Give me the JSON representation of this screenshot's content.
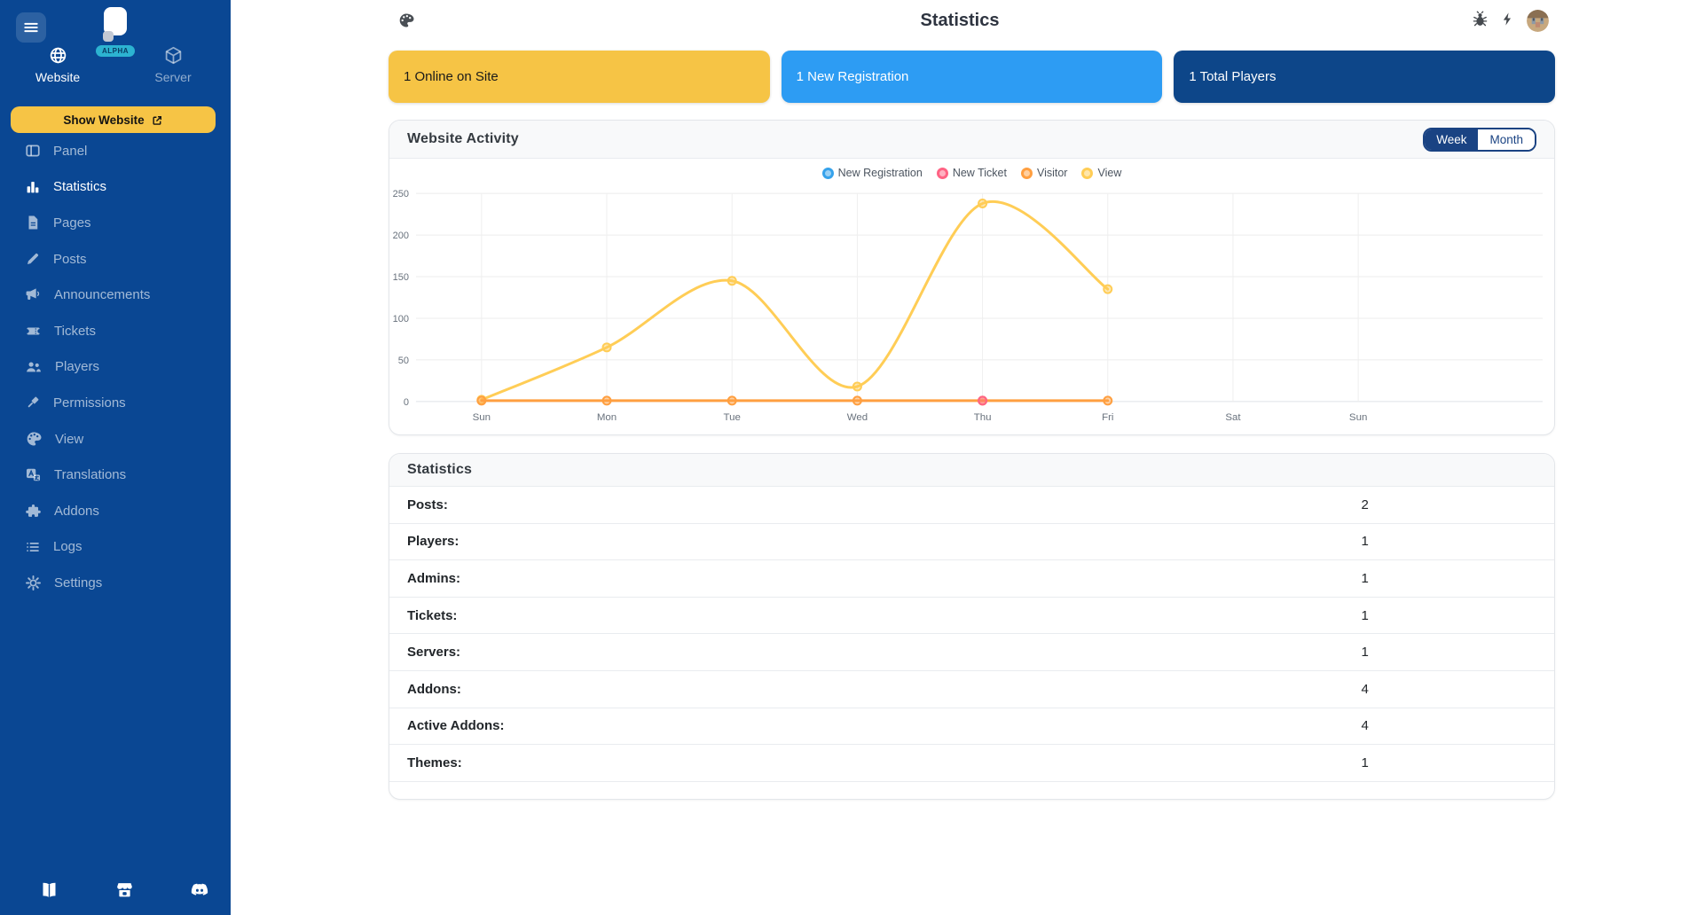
{
  "sidebar": {
    "alpha_badge": "ALPHA",
    "tabs": [
      {
        "label": "Website",
        "icon": "globe-icon",
        "active": true
      },
      {
        "label": "Server",
        "icon": "cube-icon",
        "active": false
      }
    ],
    "show_website_label": "Show Website",
    "items": [
      {
        "label": "Panel",
        "icon": "panel-icon",
        "active": false
      },
      {
        "label": "Statistics",
        "icon": "stats-icon",
        "active": true
      },
      {
        "label": "Pages",
        "icon": "file-icon",
        "active": false
      },
      {
        "label": "Posts",
        "icon": "pencil-icon",
        "active": false
      },
      {
        "label": "Announcements",
        "icon": "megaphone-icon",
        "active": false
      },
      {
        "label": "Tickets",
        "icon": "ticket-icon",
        "active": false
      },
      {
        "label": "Players",
        "icon": "users-icon",
        "active": false
      },
      {
        "label": "Permissions",
        "icon": "gavel-icon",
        "active": false
      },
      {
        "label": "View",
        "icon": "palette-icon",
        "active": false
      },
      {
        "label": "Translations",
        "icon": "translate-icon",
        "active": false
      },
      {
        "label": "Addons",
        "icon": "puzzle-icon",
        "active": false
      },
      {
        "label": "Logs",
        "icon": "list-icon",
        "active": false
      },
      {
        "label": "Settings",
        "icon": "gear-icon",
        "active": false
      }
    ],
    "footer_icons": [
      "book-icon",
      "store-icon",
      "discord-icon"
    ],
    "colors": {
      "background": "#0a4793",
      "accent_yellow": "#f6c445",
      "alpha_badge": "#2cb3d1"
    }
  },
  "topbar": {
    "title": "Statistics",
    "left_icon": "palette-icon",
    "right_icons": [
      "bug-icon",
      "lightning-icon"
    ],
    "avatar": "player-head"
  },
  "stat_cards": [
    {
      "label": "1 Online on Site",
      "background": "#f6c445",
      "text_color": "#1a1a1a"
    },
    {
      "label": "1 New Registration",
      "background": "#2d9cf3",
      "text_color": "#ffffff"
    },
    {
      "label": "1 Total Players",
      "background": "#0d4689",
      "text_color": "#ffffff"
    }
  ],
  "activity_card": {
    "title": "Website Activity",
    "range_toggle": [
      {
        "label": "Week",
        "active": true
      },
      {
        "label": "Month",
        "active": false
      }
    ]
  },
  "chart_data": {
    "type": "line",
    "x": [
      "Sun",
      "Mon",
      "Tue",
      "Wed",
      "Thu",
      "Fri",
      "Sat",
      "Sun"
    ],
    "series": [
      {
        "name": "New Registration",
        "color": "#36A2EB",
        "values": [
          null,
          null,
          null,
          null,
          null,
          null
        ]
      },
      {
        "name": "New Ticket",
        "color": "#FF6384",
        "values": [
          null,
          null,
          null,
          null,
          1,
          null
        ]
      },
      {
        "name": "Visitor",
        "color": "#FF9F40",
        "values": [
          1,
          1,
          1,
          1,
          1,
          1
        ]
      },
      {
        "name": "View",
        "color": "#FFCD56",
        "values": [
          2,
          65,
          145,
          18,
          238,
          135
        ]
      }
    ],
    "ylim": [
      0,
      250
    ],
    "yticks": [
      0,
      50,
      100,
      150,
      200,
      250
    ],
    "legend_position": "top",
    "grid": true
  },
  "stats_table": {
    "title": "Statistics",
    "rows": [
      {
        "label": "Posts:",
        "value": "2"
      },
      {
        "label": "Players:",
        "value": "1"
      },
      {
        "label": "Admins:",
        "value": "1"
      },
      {
        "label": "Tickets:",
        "value": "1"
      },
      {
        "label": "Servers:",
        "value": "1"
      },
      {
        "label": "Addons:",
        "value": "4"
      },
      {
        "label": "Active Addons:",
        "value": "4"
      },
      {
        "label": "Themes:",
        "value": "1"
      }
    ]
  }
}
